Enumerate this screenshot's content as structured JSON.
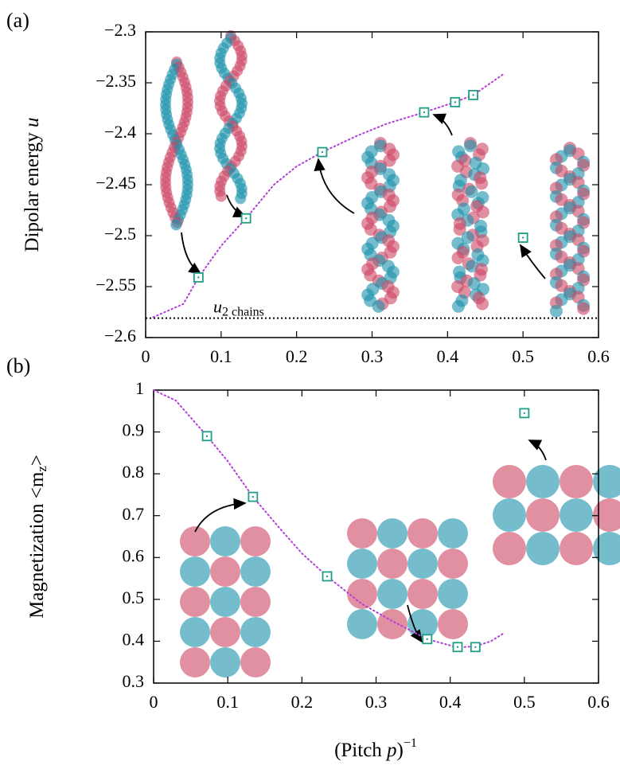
{
  "chart_data": [
    {
      "type": "scatter",
      "panel_label": "(a)",
      "ylabel": "Dipolar energy ",
      "ylabel_symbol": "u",
      "xlim": [
        0,
        0.6
      ],
      "xticks": [
        0,
        0.1,
        0.2,
        0.3,
        0.4,
        0.5,
        0.6
      ],
      "ylim": [
        -2.6,
        -2.3
      ],
      "yticks": [
        {
          "value": -2.6,
          "label": "−2.6"
        },
        {
          "value": -2.55,
          "label": "−2.55"
        },
        {
          "value": -2.5,
          "label": "−2.5"
        },
        {
          "value": -2.45,
          "label": "−2.45"
        },
        {
          "value": -2.4,
          "label": "−2.4"
        },
        {
          "value": -2.35,
          "label": "−2.35"
        },
        {
          "value": -2.3,
          "label": "−2.3"
        }
      ],
      "hline": {
        "value": -2.581,
        "label": "u",
        "label_sub": "2 chains"
      },
      "series": [
        {
          "mode": "line",
          "color": "#b23fd6",
          "x": [
            0.01,
            0.05,
            0.07,
            0.1,
            0.133,
            0.17,
            0.2,
            0.234,
            0.28,
            0.32,
            0.369,
            0.41,
            0.434,
            0.473
          ],
          "values": [
            -2.58,
            -2.567,
            -2.541,
            -2.51,
            -2.483,
            -2.45,
            -2.432,
            -2.418,
            -2.402,
            -2.39,
            -2.379,
            -2.369,
            -2.362,
            -2.342
          ]
        },
        {
          "mode": "markers",
          "color": "#1e9e86",
          "x": [
            0.07,
            0.133,
            0.234,
            0.369,
            0.41,
            0.434,
            0.5
          ],
          "values": [
            -2.541,
            -2.483,
            -2.418,
            -2.379,
            -2.369,
            -2.362,
            -2.502
          ]
        }
      ]
    },
    {
      "type": "scatter",
      "panel_label": "(b)",
      "ylabel": "Magnetization <m",
      "ylabel_sub": "z",
      "ylabel_end": ">",
      "xlabel": "(Pitch ",
      "xlabel_symbol": "p",
      "xlabel_end": ")",
      "xlabel_sup": "−1",
      "xlim": [
        0,
        0.6
      ],
      "xticks": [
        0,
        0.1,
        0.2,
        0.3,
        0.4,
        0.5,
        0.6
      ],
      "ylim": [
        0.3,
        1
      ],
      "yticks": [
        0.3,
        0.4,
        0.5,
        0.6,
        0.7,
        0.8,
        0.9,
        1
      ],
      "series": [
        {
          "mode": "line",
          "color": "#b23fd6",
          "x": [
            0,
            0.03,
            0.072,
            0.1,
            0.134,
            0.17,
            0.2,
            0.234,
            0.28,
            0.32,
            0.369,
            0.41,
            0.434,
            0.455,
            0.473
          ],
          "values": [
            1.0,
            0.975,
            0.89,
            0.83,
            0.745,
            0.67,
            0.61,
            0.555,
            0.49,
            0.45,
            0.405,
            0.385,
            0.388,
            0.4,
            0.42
          ]
        },
        {
          "mode": "markers",
          "color": "#1e9e86",
          "x": [
            0.072,
            0.134,
            0.234,
            0.369,
            0.41,
            0.434,
            0.5
          ],
          "values": [
            0.89,
            0.745,
            0.555,
            0.405,
            0.386,
            0.386,
            0.945
          ]
        }
      ]
    }
  ]
}
